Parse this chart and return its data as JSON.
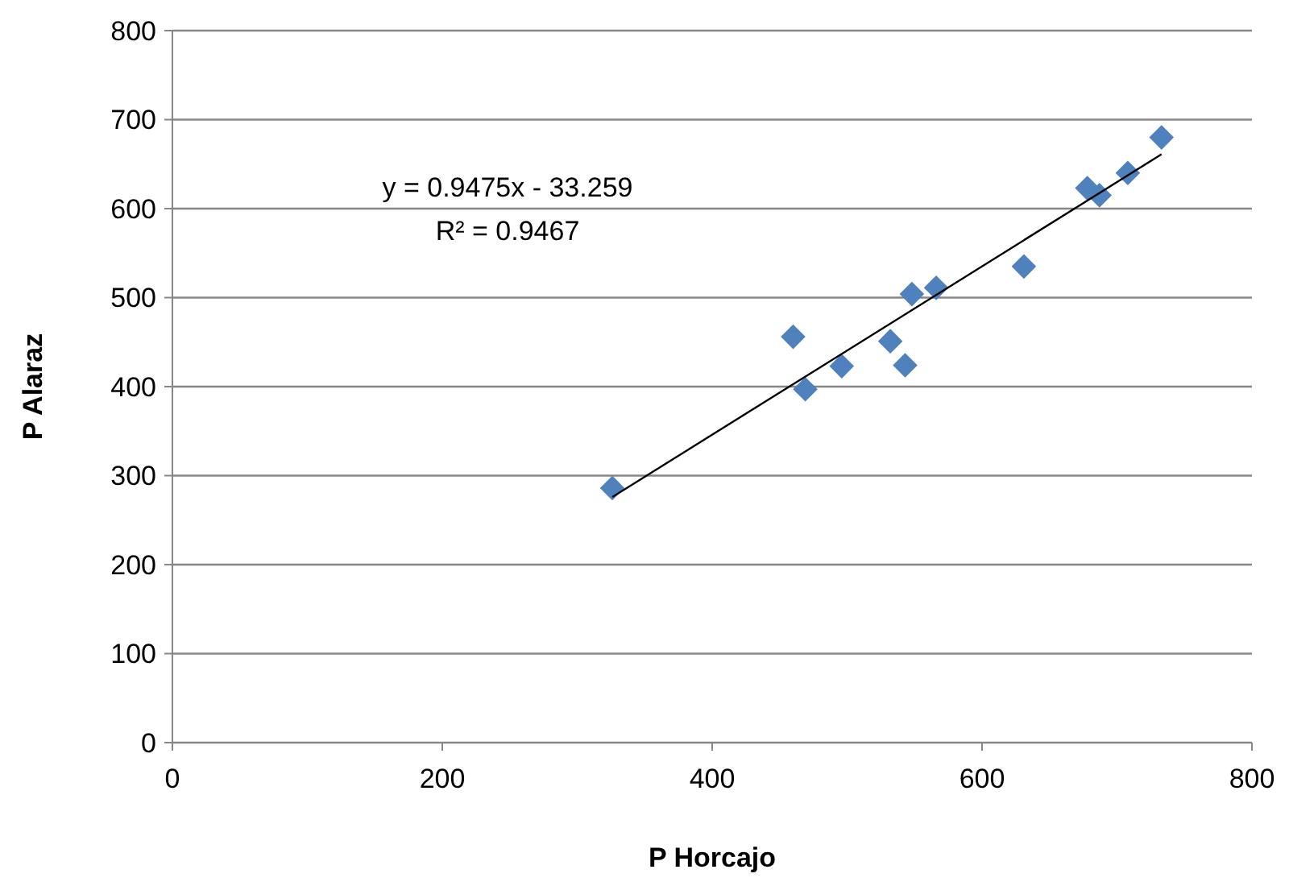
{
  "chart_data": {
    "type": "scatter",
    "xlabel": "P Horcajo",
    "ylabel": "P Alaraz",
    "xlim": [
      0,
      800
    ],
    "ylim": [
      0,
      800
    ],
    "xticks": [
      0,
      200,
      400,
      600,
      800
    ],
    "yticks": [
      0,
      100,
      200,
      300,
      400,
      500,
      600,
      700,
      800
    ],
    "grid": "y",
    "marker": "diamond",
    "annotations": [
      "y = 0.9475x - 33.259",
      "R² = 0.9467"
    ],
    "series": [
      {
        "color": "#4f81bd",
        "x": [
          326,
          460,
          469,
          496,
          532,
          543,
          548,
          566,
          631,
          678,
          687,
          708,
          733
        ],
        "values": [
          286,
          456,
          397,
          423,
          451,
          424,
          504,
          511,
          535,
          623,
          615,
          640,
          680
        ]
      },
      {
        "type": "line",
        "color": "#000000",
        "x": [
          326,
          733
        ],
        "values": [
          276,
          661
        ],
        "marker": "none"
      }
    ]
  }
}
